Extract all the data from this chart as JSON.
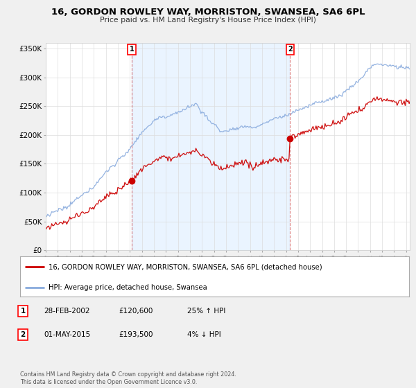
{
  "title": "16, GORDON ROWLEY WAY, MORRISTON, SWANSEA, SA6 6PL",
  "subtitle": "Price paid vs. HM Land Registry's House Price Index (HPI)",
  "legend_line1": "16, GORDON ROWLEY WAY, MORRISTON, SWANSEA, SA6 6PL (detached house)",
  "legend_line2": "HPI: Average price, detached house, Swansea",
  "annotation1_label": "1",
  "annotation1_date": "28-FEB-2002",
  "annotation1_price": "£120,600",
  "annotation1_hpi": "25% ↑ HPI",
  "annotation2_label": "2",
  "annotation2_date": "01-MAY-2015",
  "annotation2_price": "£193,500",
  "annotation2_hpi": "4% ↓ HPI",
  "footer": "Contains HM Land Registry data © Crown copyright and database right 2024.\nThis data is licensed under the Open Government Licence v3.0.",
  "sale1_year": 2002.16,
  "sale1_price": 120600,
  "sale2_year": 2015.33,
  "sale2_price": 193500,
  "red_color": "#cc0000",
  "blue_color": "#88aadd",
  "fill_color": "#ddeeff",
  "background_color": "#f0f0f0",
  "plot_bg_color": "#ffffff",
  "ylim": [
    0,
    360000
  ],
  "yticks": [
    0,
    50000,
    100000,
    150000,
    200000,
    250000,
    300000,
    350000
  ],
  "ytick_labels": [
    "£0",
    "£50K",
    "£100K",
    "£150K",
    "£200K",
    "£250K",
    "£300K",
    "£350K"
  ]
}
